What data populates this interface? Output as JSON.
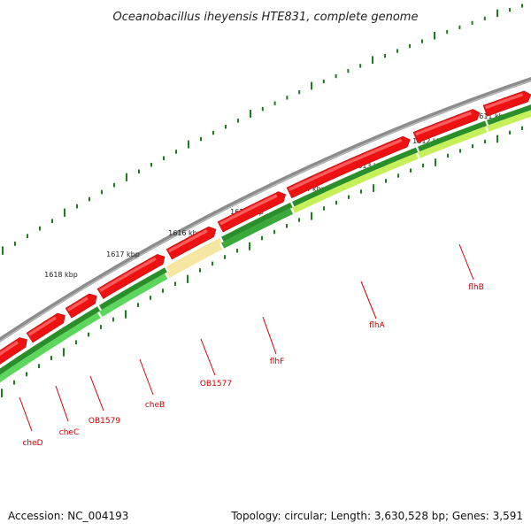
{
  "title": "Oceanobacillus iheyensis HTE831, complete genome",
  "footer": {
    "accession": "Accession: NC_004193",
    "summary": "Topology: circular; Length: 3,630,528 bp; Genes: 3,591"
  },
  "colors": {
    "backbone": "#8c8c8c",
    "forward_gene": "#ee1111",
    "forward_gene_light": "#ff6e6e",
    "orf_dark_green": "#2a8f2a",
    "orf_green": "#5cd65c",
    "orf_light_green": "#c6f05a",
    "orf_pale_yellow": "#f5e7a0",
    "tick": "#1c7d1c",
    "label": "#cc0000"
  },
  "scale_labels": [
    "1611 kbp",
    "1612 kbp",
    "1613 kbp",
    "1614 kbp",
    "1615 kbp",
    "1616 kbp",
    "1617 kbp",
    "1618 kbp"
  ],
  "gene_labels": [
    {
      "id": "flhB",
      "name": "flhB"
    },
    {
      "id": "flhA",
      "name": "flhA"
    },
    {
      "id": "flhF",
      "name": "flhF"
    },
    {
      "id": "OB1577",
      "name": "OB1577"
    },
    {
      "id": "cheB",
      "name": "cheB"
    },
    {
      "id": "OB1579",
      "name": "OB1579"
    },
    {
      "id": "cheC",
      "name": "cheC"
    },
    {
      "id": "cheD",
      "name": "cheD"
    }
  ]
}
